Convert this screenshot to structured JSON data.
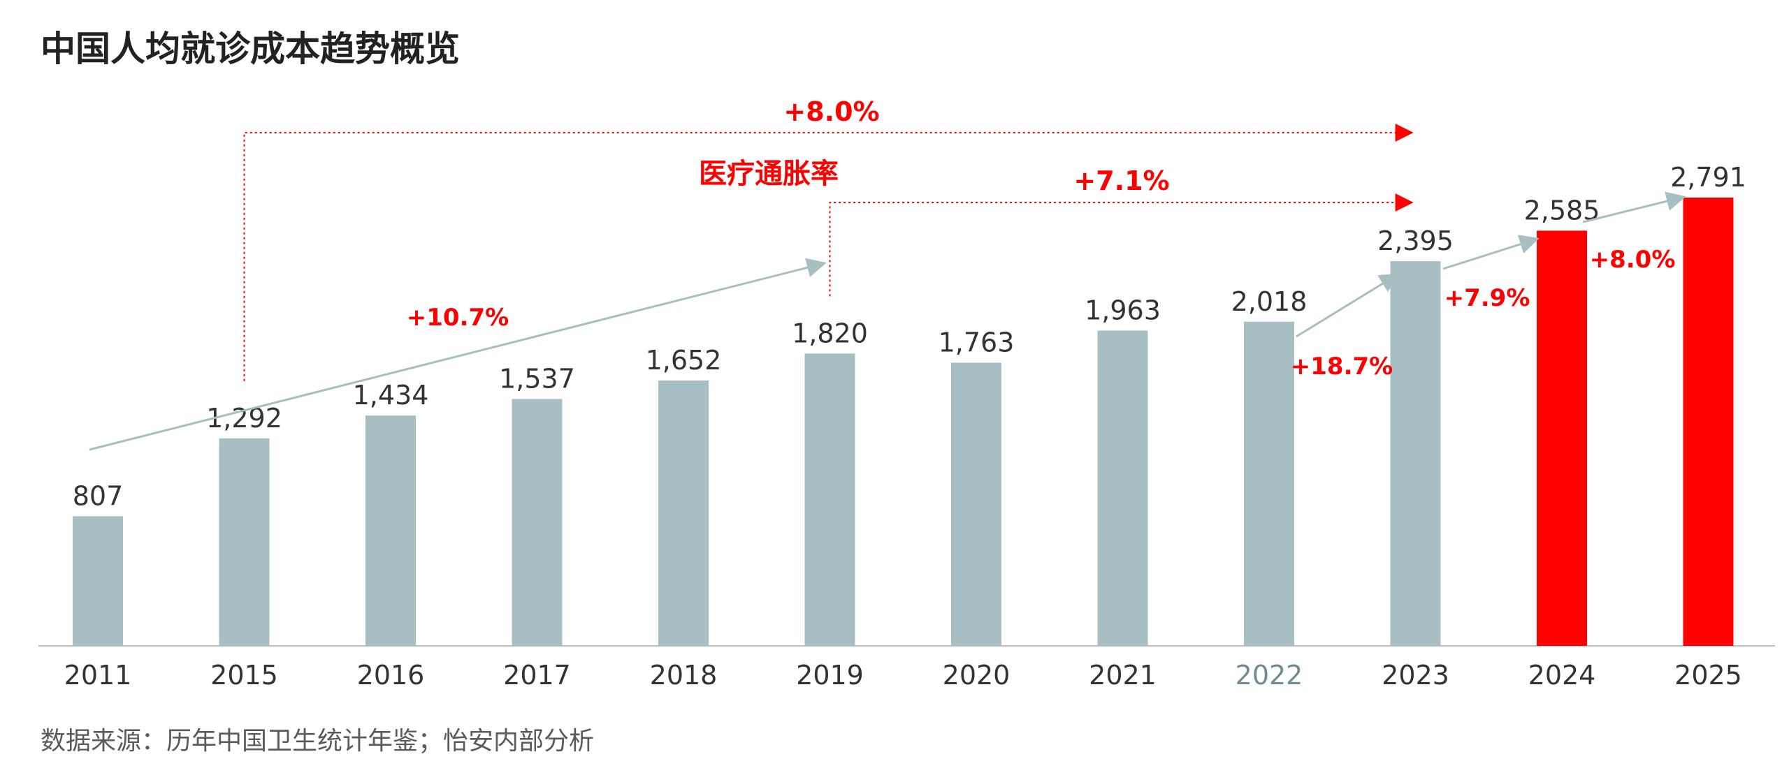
{
  "title": "中国人均就诊成本趋势概览",
  "source": "数据来源：历年中国卫生统计年鉴；怡安内部分析",
  "colors": {
    "bar": "#a7bfc2",
    "highlight": "#ff0000",
    "annotation": "#ff0000",
    "arrow": "#a7bfc2"
  },
  "chart_data": {
    "type": "bar",
    "title": "中国人均就诊成本趋势概览",
    "xlabel": "",
    "ylabel": "",
    "ylim": [
      0,
      2791
    ],
    "grid": false,
    "categories": [
      "2011",
      "2015",
      "2016",
      "2017",
      "2018",
      "2019",
      "2020",
      "2021",
      "2022",
      "2023",
      "2024",
      "2025"
    ],
    "values": [
      807,
      1292,
      1434,
      1537,
      1652,
      1820,
      1763,
      1963,
      2018,
      2395,
      2585,
      2791
    ],
    "value_labels": [
      "807",
      "1,292",
      "1,434",
      "1,537",
      "1,652",
      "1,820",
      "1,763",
      "1,963",
      "2,018",
      "2,395",
      "2,585",
      "2,791"
    ],
    "highlight_categories": [
      "2024",
      "2025"
    ],
    "annotations": {
      "medical_inflation_label": "医疗通胀率",
      "bracket_2015_2023": "+8.0%",
      "bracket_2019_2023": "+7.1%",
      "growth_2011_2019": "+10.7%",
      "growth_2022_2023": "+18.7%",
      "growth_2023_2024": "+7.9%",
      "growth_2024_2025": "+8.0%"
    }
  }
}
